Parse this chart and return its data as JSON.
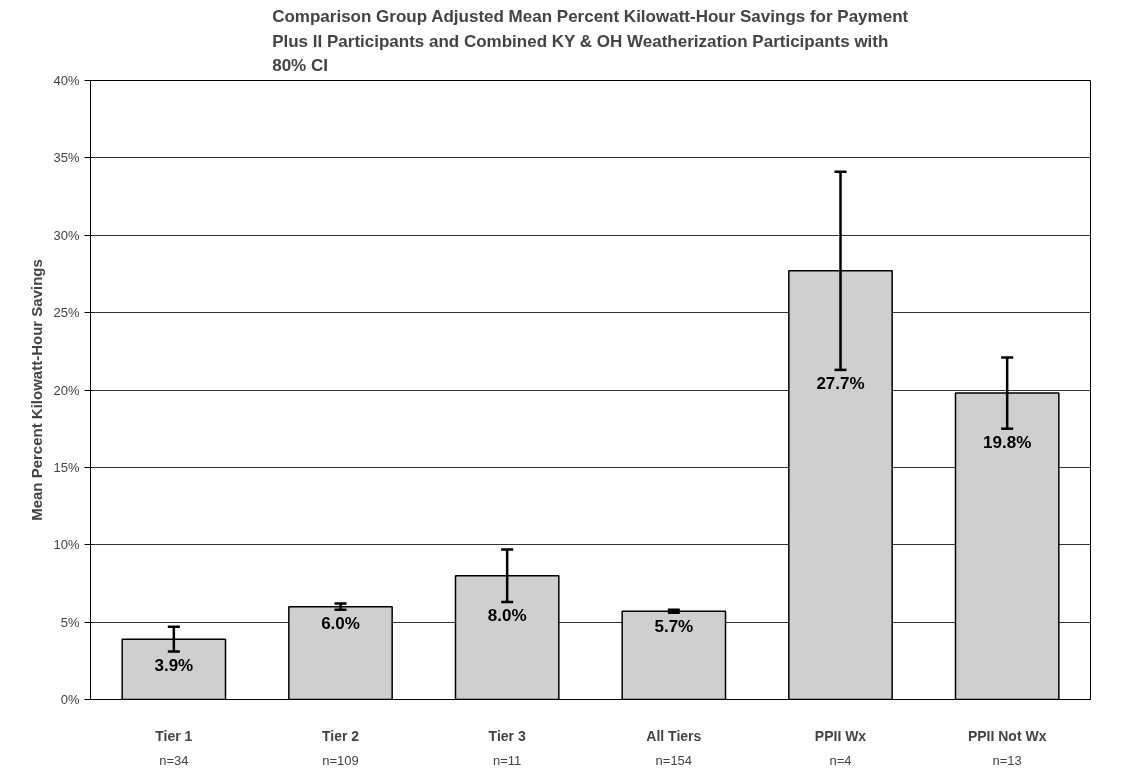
{
  "chart_data": {
    "type": "bar",
    "title": "Comparison Group Adjusted Mean Percent Kilowatt-Hour Savings for Payment Plus II Participants and Combined KY & OH Weatherization Participants with 80% CI",
    "ylabel": "Mean Percent Kilowatt-Hour Savings",
    "categories": [
      "Tier 1",
      "Tier 2",
      "Tier 3",
      "All Tiers",
      "PPII Wx",
      "PPII Not Wx"
    ],
    "values": [
      3.9,
      6.0,
      8.0,
      5.7,
      27.7,
      19.8
    ],
    "errors": [
      0.8,
      0.2,
      1.7,
      0.1,
      6.4,
      2.3
    ],
    "value_labels": [
      "3.9%",
      "6.0%",
      "8.0%",
      "5.7%",
      "27.7%",
      "19.8%"
    ],
    "annotations": [
      "n=34",
      "n=109",
      "n=11",
      "n=154",
      "n=4",
      "n=13"
    ],
    "color": "#cfcfcf",
    "ylim": [
      0,
      40
    ],
    "yticks": [
      {
        "value": 0,
        "label": "0%"
      },
      {
        "value": 5,
        "label": "5%"
      },
      {
        "value": 10,
        "label": "10%"
      },
      {
        "value": 15,
        "label": "15%"
      },
      {
        "value": 20,
        "label": "20%"
      },
      {
        "value": 25,
        "label": "25%"
      },
      {
        "value": 30,
        "label": "30%"
      },
      {
        "value": 35,
        "label": "35%"
      },
      {
        "value": 40,
        "label": "40%"
      }
    ],
    "grid": "y"
  }
}
